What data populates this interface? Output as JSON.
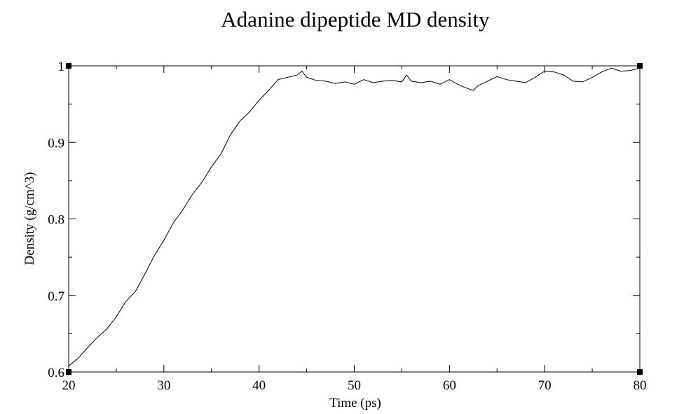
{
  "chart_data": {
    "type": "line",
    "title": "Adanine dipeptide MD density",
    "xlabel": "Time (ps)",
    "ylabel": "Density (g/cm^3)",
    "xlim": [
      20,
      80
    ],
    "ylim": [
      0.6,
      1.0
    ],
    "xticks": [
      20,
      30,
      40,
      50,
      60,
      70,
      80
    ],
    "xtick_labels": [
      "20",
      "30",
      "40",
      "50",
      "60",
      "70",
      "80"
    ],
    "yticks": [
      0.6,
      0.7,
      0.8,
      0.9,
      1.0
    ],
    "ytick_labels": [
      "0.6",
      "0.7",
      "0.8",
      "0.9",
      "1"
    ],
    "grid": false,
    "legend": "none",
    "line_color": "#000000",
    "series": [
      {
        "x": [
          20.0,
          21.0,
          22.0,
          23.0,
          24.0,
          25.0,
          26.0,
          27.0,
          28.0,
          29.0,
          30.0,
          31.0,
          32.0,
          33.0,
          34.0,
          35.0,
          36.0,
          37.0,
          38.0,
          39.0,
          40.0,
          41.0,
          42.0,
          43.0,
          44.0,
          44.5,
          45.0,
          46.0,
          47.0,
          48.0,
          49.0,
          50.0,
          51.0,
          52.0,
          53.0,
          54.0,
          55.0,
          55.5,
          56.0,
          57.0,
          58.0,
          59.0,
          60.0,
          61.0,
          62.0,
          62.5,
          63.0,
          64.0,
          65.0,
          66.0,
          67.0,
          68.0,
          69.0,
          70.0,
          71.0,
          72.0,
          73.0,
          74.0,
          75.0,
          76.0,
          77.0,
          78.0,
          79.0,
          80.0
        ],
        "y": [
          0.608,
          0.618,
          0.632,
          0.645,
          0.656,
          0.672,
          0.692,
          0.705,
          0.728,
          0.752,
          0.772,
          0.795,
          0.812,
          0.832,
          0.848,
          0.868,
          0.885,
          0.91,
          0.928,
          0.94,
          0.955,
          0.968,
          0.982,
          0.985,
          0.988,
          0.993,
          0.985,
          0.981,
          0.98,
          0.977,
          0.979,
          0.976,
          0.982,
          0.978,
          0.98,
          0.981,
          0.979,
          0.988,
          0.98,
          0.978,
          0.98,
          0.976,
          0.982,
          0.975,
          0.97,
          0.968,
          0.974,
          0.98,
          0.986,
          0.982,
          0.98,
          0.978,
          0.985,
          0.993,
          0.992,
          0.988,
          0.98,
          0.979,
          0.985,
          0.992,
          0.997,
          0.993,
          0.994,
          0.997
        ]
      }
    ]
  }
}
